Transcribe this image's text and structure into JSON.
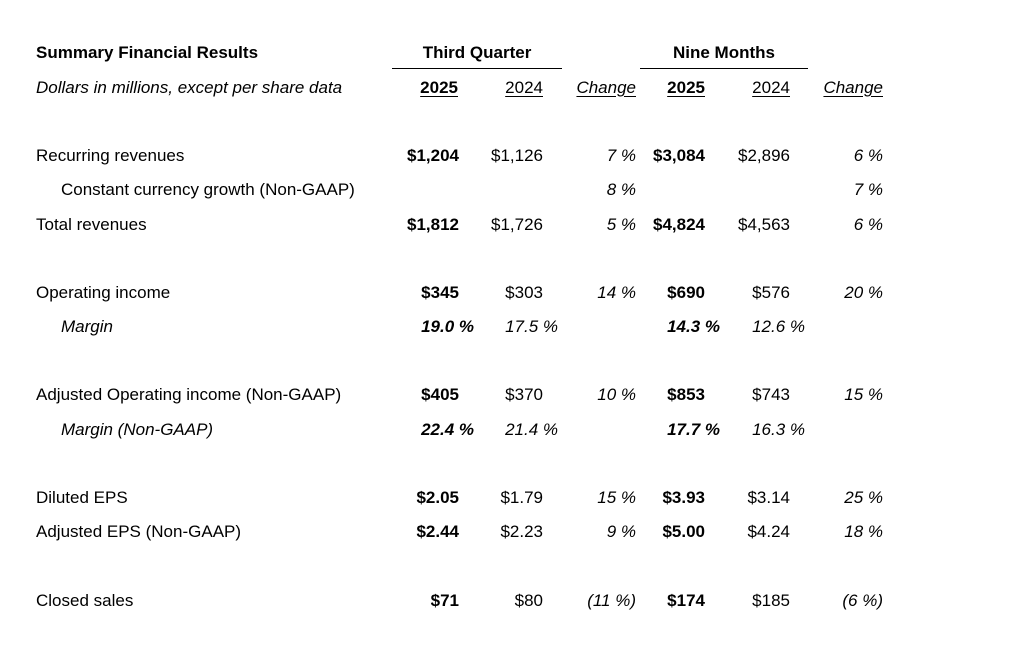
{
  "header": {
    "title": "Summary Financial Results",
    "subtitle": "Dollars in millions, except per share data",
    "group_q": "Third Quarter",
    "group_nm": "Nine Months",
    "cols": [
      "2025",
      "2024",
      "Change",
      "2025",
      "2024",
      "Change"
    ]
  },
  "rows": [
    {
      "label": "Recurring revenues",
      "indent": false,
      "italic": false,
      "q25": "$1,204",
      "q24": "$1,126",
      "qch": "7 %",
      "n25": "$3,084",
      "n24": "$2,896",
      "nch": "6 %"
    },
    {
      "label": "Constant currency growth (Non-GAAP)",
      "indent": true,
      "italic": false,
      "q25": "",
      "q24": "",
      "qch": "8 %",
      "n25": "",
      "n24": "",
      "nch": "7 %"
    },
    {
      "label": "Total revenues",
      "indent": false,
      "italic": false,
      "q25": "$1,812",
      "q24": "$1,726",
      "qch": "5 %",
      "n25": "$4,824",
      "n24": "$4,563",
      "nch": "6 %"
    },
    {
      "label": "Operating income",
      "indent": false,
      "italic": false,
      "q25": "$345",
      "q24": "$303",
      "qch": "14 %",
      "n25": "$690",
      "n24": "$576",
      "nch": "20 %"
    },
    {
      "label": "Margin",
      "indent": true,
      "italic": true,
      "q25": "19.0 %",
      "q24": "17.5 %",
      "qch": "",
      "n25": "14.3 %",
      "n24": "12.6 %",
      "nch": ""
    },
    {
      "label": "Adjusted Operating income (Non-GAAP)",
      "indent": false,
      "italic": false,
      "q25": "$405",
      "q24": "$370",
      "qch": "10 %",
      "n25": "$853",
      "n24": "$743",
      "nch": "15 %"
    },
    {
      "label": "Margin (Non-GAAP)",
      "indent": true,
      "italic": true,
      "q25": "22.4 %",
      "q24": "21.4 %",
      "qch": "",
      "n25": "17.7 %",
      "n24": "16.3 %",
      "nch": ""
    },
    {
      "label": "Diluted EPS",
      "indent": false,
      "italic": false,
      "q25": "$2.05",
      "q24": "$1.79",
      "qch": "15 %",
      "n25": "$3.93",
      "n24": "$3.14",
      "nch": "25 %"
    },
    {
      "label": "Adjusted EPS (Non-GAAP)",
      "indent": false,
      "italic": false,
      "q25": "$2.44",
      "q24": "$2.23",
      "qch": "9 %",
      "n25": "$5.00",
      "n24": "$4.24",
      "nch": "18 %"
    },
    {
      "label": "Closed sales",
      "indent": false,
      "italic": false,
      "q25": "$71",
      "q24": "$80",
      "qch": "(11 %)",
      "n25": "$174",
      "n24": "$185",
      "nch": "(6 %)"
    }
  ]
}
